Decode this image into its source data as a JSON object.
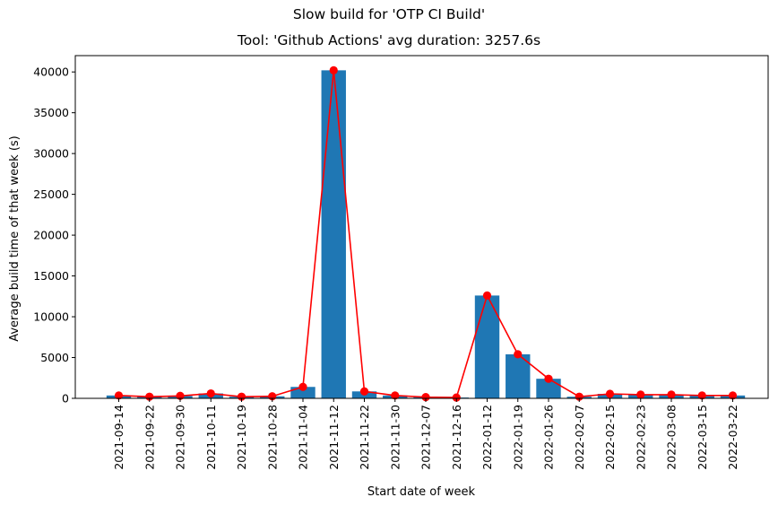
{
  "chart_data": {
    "type": "bar",
    "title": "Slow build for 'OTP CI Build'",
    "subtitle": "Tool: 'Github Actions' avg duration: 3257.6s",
    "xlabel": "Start date of week",
    "ylabel": "Average build time of that week (s)",
    "ylim": [
      0,
      42000
    ],
    "yticks": [
      0,
      5000,
      10000,
      15000,
      20000,
      25000,
      30000,
      35000,
      40000
    ],
    "grid": false,
    "categories": [
      "2021-09-14",
      "2021-09-22",
      "2021-09-30",
      "2021-10-11",
      "2021-10-19",
      "2021-10-28",
      "2021-11-04",
      "2021-11-12",
      "2021-11-22",
      "2021-11-30",
      "2021-12-07",
      "2021-12-16",
      "2022-01-12",
      "2022-01-19",
      "2022-01-26",
      "2022-02-07",
      "2022-02-15",
      "2022-02-23",
      "2022-03-08",
      "2022-03-15",
      "2022-03-22"
    ],
    "series": [
      {
        "type": "bar",
        "color": "#1f77b4",
        "values": [
          350,
          200,
          300,
          600,
          200,
          250,
          1400,
          40200,
          850,
          350,
          150,
          100,
          12600,
          5400,
          2400,
          200,
          550,
          450,
          450,
          350,
          350
        ]
      },
      {
        "type": "line",
        "color": "#ff0000",
        "marker": "circle",
        "values": [
          350,
          200,
          300,
          600,
          200,
          250,
          1400,
          40200,
          850,
          350,
          150,
          100,
          12600,
          5400,
          2400,
          200,
          550,
          450,
          450,
          350,
          350
        ]
      }
    ]
  }
}
